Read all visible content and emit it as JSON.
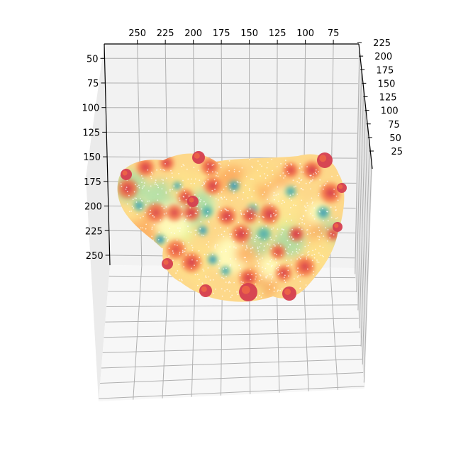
{
  "chart_data": {
    "type": "scatter",
    "projection": "3d",
    "title": "",
    "xlabel": "",
    "ylabel": "",
    "zlabel": "",
    "grid": true,
    "colormap": "Spectral",
    "colormap_stops": [
      "#5e4fa2",
      "#3288bd",
      "#66c2a5",
      "#abdda4",
      "#e6f598",
      "#ffffbf",
      "#fee08b",
      "#fdae61",
      "#f46d43",
      "#d53e4f",
      "#9e0142"
    ],
    "pane_color": "#f2f2f2",
    "top_axis": {
      "ticks": [
        250,
        225,
        200,
        175,
        150,
        125,
        100,
        75
      ],
      "labels": [
        "250",
        "225",
        "200",
        "175",
        "150",
        "125",
        "100",
        "75"
      ]
    },
    "left_axis": {
      "ticks": [
        50,
        75,
        100,
        125,
        150,
        175,
        200,
        225,
        250
      ],
      "labels": [
        "50",
        "75",
        "100",
        "125",
        "150",
        "175",
        "200",
        "225",
        "250"
      ]
    },
    "right_axis": {
      "ticks": [
        225,
        200,
        175,
        150,
        125,
        100,
        75,
        50,
        25
      ],
      "labels": [
        "225",
        "200",
        "175",
        "150",
        "125",
        "100",
        "75",
        "50",
        "25"
      ]
    },
    "surface_summary": "dense point cloud of a molecular surface, colored by a per-point value on the Spectral colormap (red-yellow-green-blue)"
  }
}
